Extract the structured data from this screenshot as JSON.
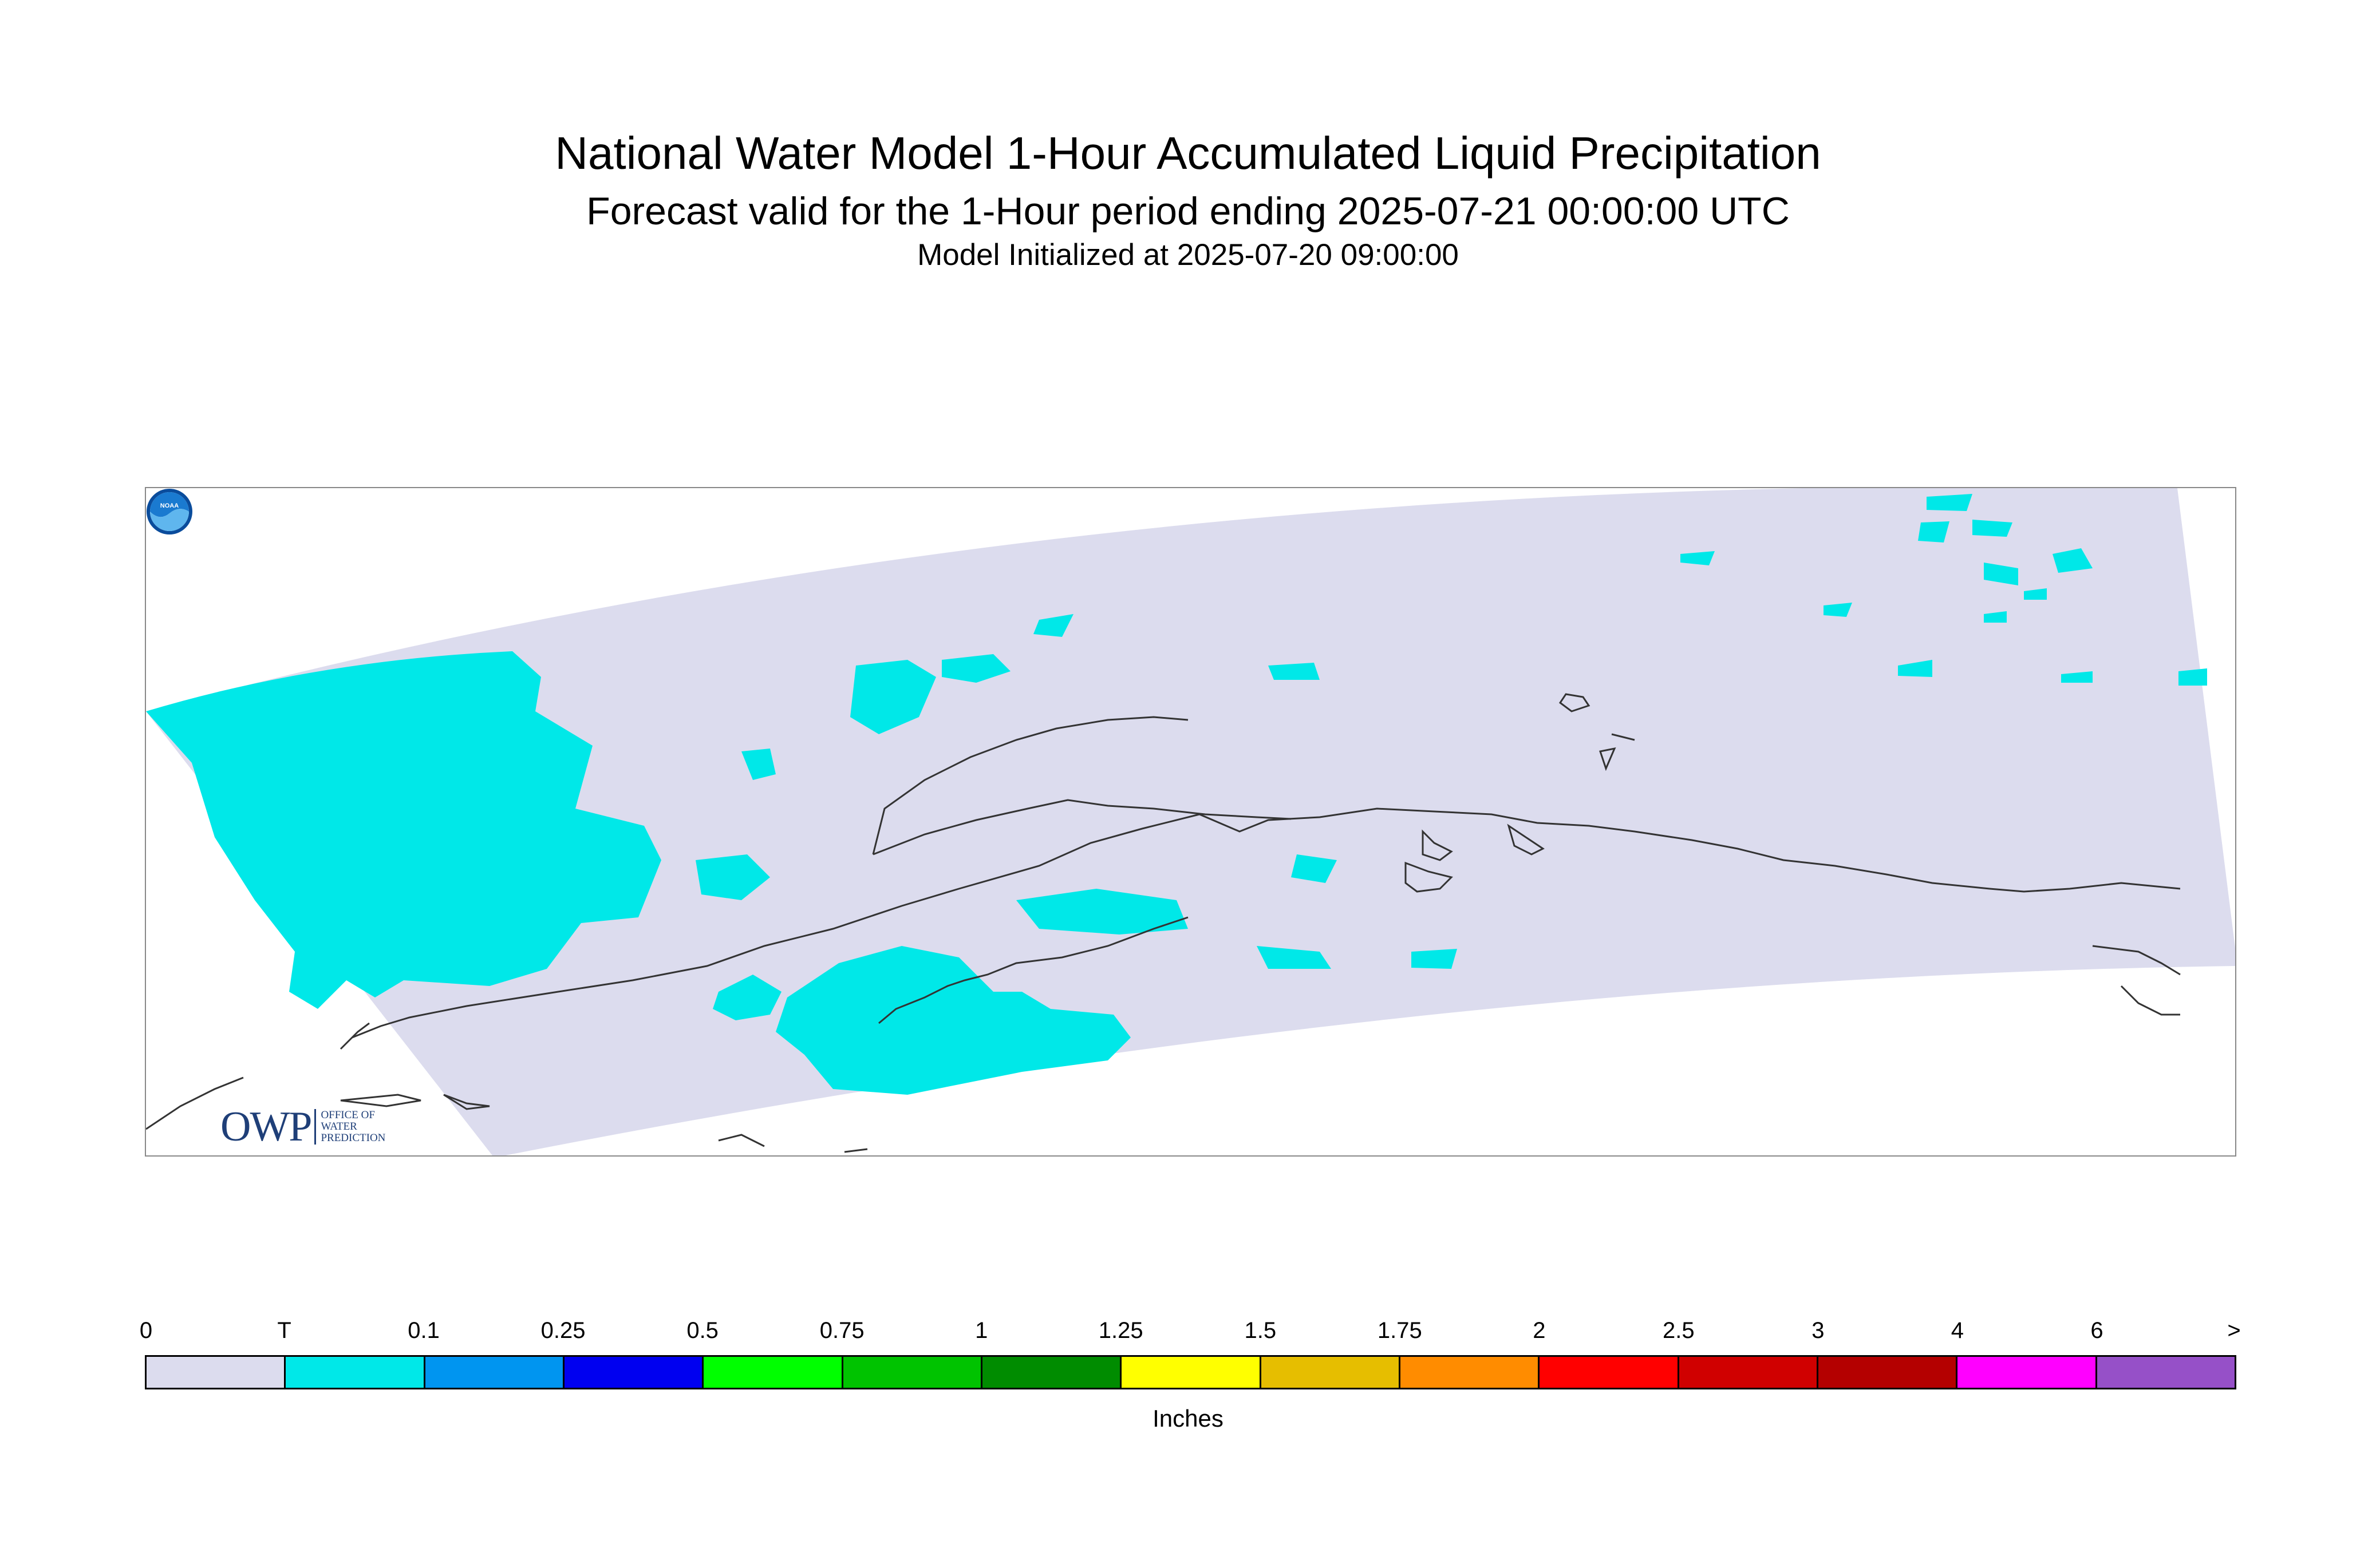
{
  "header": {
    "title": "National Water Model 1-Hour Accumulated Liquid Precipitation",
    "subtitle": "Forecast valid for the 1-Hour period ending 2025-07-21 00:00:00 UTC",
    "init_line": "Model Initialized at 2025-07-20 09:00:00"
  },
  "logos": {
    "owp_letters": "OWP",
    "owp_lines": [
      "OFFICE OF",
      "WATER",
      "PREDICTION"
    ],
    "noaa": "NOAA"
  },
  "legend": {
    "tick_labels": [
      "0",
      "T",
      "0.1",
      "0.25",
      "0.5",
      "0.75",
      "1",
      "1.25",
      "1.5",
      "1.75",
      "2",
      "2.5",
      "3",
      "4",
      "6",
      ">"
    ],
    "colors": [
      "#dcdcee",
      "#00e8e8",
      "#0095f0",
      "#0000f0",
      "#00ff00",
      "#00c300",
      "#008c00",
      "#ffff00",
      "#e6be00",
      "#ff8c00",
      "#ff0000",
      "#d00000",
      "#b40000",
      "#ff00ff",
      "#9650c8"
    ],
    "units": "Inches"
  },
  "map": {
    "domain_fill": "#dcdcee",
    "trace_color": "#00e8e8",
    "coast_color": "#333333"
  }
}
